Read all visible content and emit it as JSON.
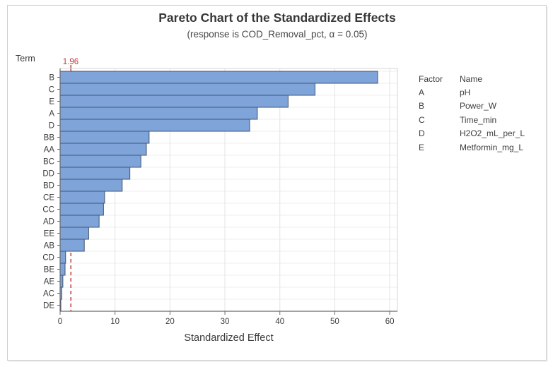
{
  "figure": {
    "title": "Pareto Chart of the Standardized Effects",
    "subtitle": "(response is COD_Removal_pct, α = 0.05)"
  },
  "axes": {
    "y_title": "Term",
    "x_title": "Standardized Effect"
  },
  "reference": {
    "label": "1.96",
    "value": 1.96
  },
  "legend": {
    "header": {
      "factor": "Factor",
      "name": "Name"
    },
    "rows": [
      {
        "factor": "A",
        "name": "pH"
      },
      {
        "factor": "B",
        "name": "Power_W"
      },
      {
        "factor": "C",
        "name": "Time_min"
      },
      {
        "factor": "D",
        "name": "H2O2_mL_per_L"
      },
      {
        "factor": "E",
        "name": "Metformin_mg_L"
      }
    ]
  },
  "colors": {
    "bar_fill": "#7EA4D9",
    "bar_stroke": "#45536B",
    "reference_line": "#C23B3B",
    "grid_vertical": "#E3E3E3",
    "grid_horizontal": "#EDEDED",
    "axis": "#6A6A6A",
    "plot_border": "#D6D6D6",
    "text": "#3A3A3A"
  },
  "chart_data": {
    "type": "bar",
    "orientation": "horizontal",
    "title": "Pareto Chart of the Standardized Effects",
    "subtitle": "(response is COD_Removal_pct, α = 0.05)",
    "xlabel": "Standardized Effect",
    "ylabel": "Term",
    "alpha": 0.05,
    "categories": [
      "B",
      "C",
      "E",
      "A",
      "D",
      "BB",
      "AA",
      "BC",
      "DD",
      "BD",
      "CE",
      "CC",
      "AD",
      "EE",
      "AB",
      "CD",
      "BE",
      "AE",
      "AC",
      "DE"
    ],
    "values": [
      57.8,
      46.4,
      41.5,
      35.9,
      34.5,
      16.2,
      15.7,
      14.7,
      12.7,
      11.3,
      8.1,
      7.9,
      7.1,
      5.2,
      4.4,
      1.0,
      0.9,
      0.5,
      0.3,
      0.1
    ],
    "xlim": [
      0,
      61.4
    ],
    "xticks": [
      0,
      10,
      20,
      30,
      40,
      50,
      60
    ],
    "reference_line": 1.96,
    "grid": true,
    "legend_position": "right",
    "factor_names": {
      "A": "pH",
      "B": "Power_W",
      "C": "Time_min",
      "D": "H2O2_mL_per_L",
      "E": "Metformin_mg_L"
    }
  }
}
